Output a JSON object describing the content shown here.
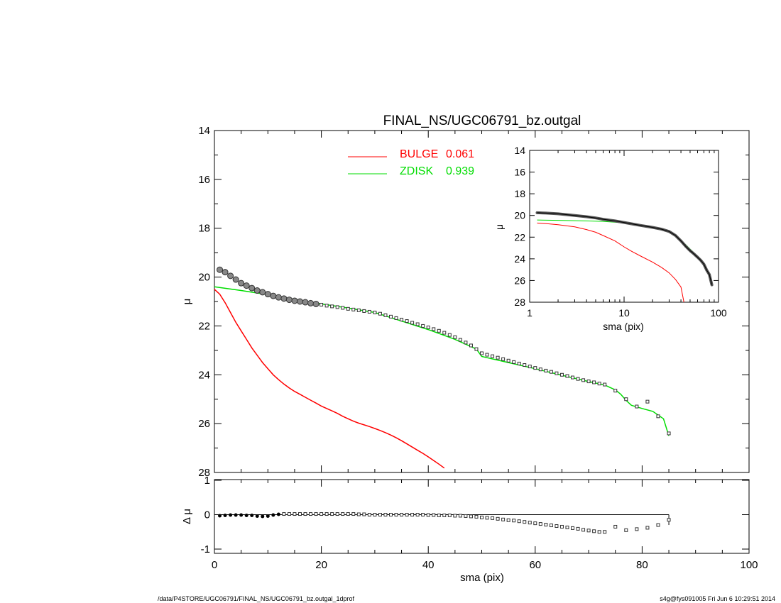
{
  "colors": {
    "bulge": "#ff0000",
    "zdisk": "#00dd00",
    "data": "#000000"
  },
  "footer": {
    "left": "/data/P4STORE/UGC06791/FINAL_NS/UGC06791_bz.outgal_1dprof",
    "right": "s4g@fys091005  Fri Jun  6 10:29:51 2014"
  },
  "chart_data": [
    {
      "id": "main",
      "type": "scatter",
      "title": "FINAL_NS/UGC06791_bz.outgal",
      "xlabel": "",
      "ylabel": "μ",
      "xlim": [
        0,
        100
      ],
      "ylim": [
        28,
        14
      ],
      "yticks": [
        "14",
        "16",
        "18",
        "20",
        "22",
        "24",
        "26",
        "28"
      ],
      "legend": {
        "placement": "top-center",
        "entries": [
          {
            "name": "BULGE",
            "value": "0.061",
            "color": "#ff0000"
          },
          {
            "name": "ZDISK",
            "value": "0.939",
            "color": "#00dd00"
          }
        ]
      },
      "series": [
        {
          "name": "data",
          "x": [
            1,
            2,
            3,
            4,
            5,
            6,
            7,
            8,
            9,
            10,
            11,
            12,
            13,
            14,
            15,
            16,
            17,
            18,
            19,
            20,
            21,
            22,
            23,
            24,
            25,
            26,
            27,
            28,
            29,
            30,
            31,
            32,
            33,
            34,
            35,
            36,
            37,
            38,
            39,
            40,
            41,
            42,
            43,
            44,
            45,
            46,
            47,
            48,
            49,
            50,
            51,
            52,
            53,
            54,
            55,
            56,
            57,
            58,
            59,
            60,
            61,
            62,
            63,
            64,
            65,
            66,
            67,
            68,
            69,
            70,
            71,
            72,
            73,
            75,
            77,
            79,
            81,
            83,
            85
          ],
          "y": [
            19.7,
            19.8,
            19.95,
            20.1,
            20.25,
            20.35,
            20.45,
            20.55,
            20.62,
            20.7,
            20.77,
            20.83,
            20.88,
            20.93,
            20.97,
            21.0,
            21.03,
            21.07,
            21.1,
            21.13,
            21.17,
            21.2,
            21.23,
            21.26,
            21.3,
            21.33,
            21.36,
            21.39,
            21.42,
            21.45,
            21.5,
            21.56,
            21.62,
            21.68,
            21.74,
            21.8,
            21.87,
            21.93,
            22.0,
            22.06,
            22.13,
            22.2,
            22.28,
            22.37,
            22.46,
            22.57,
            22.68,
            22.8,
            22.95,
            23.12,
            23.18,
            23.24,
            23.3,
            23.36,
            23.42,
            23.48,
            23.54,
            23.6,
            23.66,
            23.72,
            23.78,
            23.83,
            23.88,
            23.94,
            24.0,
            24.05,
            24.11,
            24.17,
            24.22,
            24.27,
            24.31,
            24.36,
            24.4,
            24.65,
            25.0,
            25.3,
            25.1,
            25.7,
            26.4
          ]
        },
        {
          "name": "BULGE",
          "x": [
            0,
            1,
            2,
            3,
            4,
            5,
            6,
            7,
            8,
            9,
            10,
            11,
            12,
            13,
            14,
            15,
            16,
            17,
            18,
            19,
            20,
            21,
            22,
            23,
            24,
            25,
            26,
            27,
            28,
            29,
            30,
            31,
            32,
            33,
            34,
            35,
            36,
            37,
            38,
            39,
            40,
            41,
            42,
            43
          ],
          "y": [
            20.5,
            20.7,
            21.05,
            21.45,
            21.85,
            22.2,
            22.55,
            22.9,
            23.2,
            23.5,
            23.75,
            24.0,
            24.2,
            24.38,
            24.54,
            24.68,
            24.8,
            24.92,
            25.04,
            25.16,
            25.28,
            25.38,
            25.48,
            25.58,
            25.7,
            25.8,
            25.9,
            25.98,
            26.05,
            26.12,
            26.2,
            26.28,
            26.37,
            26.47,
            26.58,
            26.7,
            26.83,
            26.96,
            27.09,
            27.22,
            27.36,
            27.51,
            27.66,
            27.82
          ]
        },
        {
          "name": "ZDISK",
          "x": [
            0,
            5,
            10,
            15,
            20,
            25,
            30,
            35,
            40,
            45,
            49,
            50,
            55,
            60,
            65,
            70,
            73,
            74,
            75,
            76,
            77,
            78,
            80,
            82,
            84,
            85
          ],
          "y": [
            20.4,
            20.55,
            20.72,
            20.92,
            21.1,
            21.27,
            21.45,
            21.8,
            22.15,
            22.55,
            22.95,
            23.25,
            23.5,
            23.75,
            24.02,
            24.28,
            24.42,
            24.52,
            24.62,
            24.8,
            25.05,
            25.25,
            25.38,
            25.5,
            25.8,
            26.5
          ]
        }
      ]
    },
    {
      "id": "inset",
      "type": "line",
      "xlabel": "sma (pix)",
      "ylabel": "μ",
      "xscale": "log",
      "xlim": [
        1,
        100
      ],
      "ylim": [
        28,
        14
      ],
      "xticks": [
        "1",
        "10",
        "100"
      ],
      "yticks": [
        "14",
        "16",
        "18",
        "20",
        "22",
        "24",
        "26",
        "28"
      ],
      "series": [
        {
          "name": "data",
          "x": [
            1.2,
            1.5,
            2,
            3,
            4,
            5,
            6,
            8,
            10,
            12,
            15,
            20,
            25,
            30,
            35,
            40,
            45,
            50,
            55,
            60,
            65,
            70,
            75,
            80,
            85
          ],
          "y": [
            19.75,
            19.78,
            19.85,
            20.0,
            20.12,
            20.23,
            20.35,
            20.5,
            20.65,
            20.77,
            20.92,
            21.1,
            21.27,
            21.48,
            21.85,
            22.35,
            22.85,
            23.25,
            23.55,
            23.85,
            24.15,
            24.5,
            25.05,
            25.45,
            26.4
          ]
        },
        {
          "name": "BULGE",
          "x": [
            1.2,
            1.5,
            2,
            3,
            4,
            5,
            6,
            8,
            10,
            12,
            15,
            20,
            25,
            30,
            35,
            40,
            43
          ],
          "y": [
            20.7,
            20.75,
            20.85,
            21.05,
            21.3,
            21.55,
            21.85,
            22.35,
            22.9,
            23.3,
            23.75,
            24.3,
            24.8,
            25.3,
            25.9,
            26.6,
            28.0
          ]
        },
        {
          "name": "ZDISK",
          "x": [
            1.2,
            2,
            4,
            6,
            10,
            15,
            20,
            25,
            30,
            35,
            40,
            45,
            50,
            55,
            60,
            65,
            70,
            75,
            80,
            85
          ],
          "y": [
            20.42,
            20.45,
            20.5,
            20.55,
            20.68,
            20.85,
            21.05,
            21.25,
            21.45,
            21.8,
            22.25,
            22.7,
            23.1,
            23.45,
            23.75,
            24.1,
            24.5,
            25.05,
            25.55,
            26.45
          ]
        }
      ]
    },
    {
      "id": "residual",
      "type": "scatter",
      "xlabel": "sma (pix)",
      "ylabel": "Δ μ",
      "xlim": [
        0,
        100
      ],
      "ylim": [
        -1,
        1
      ],
      "xticks": [
        "0",
        "20",
        "40",
        "60",
        "80",
        "100"
      ],
      "yticks": [
        "1",
        "0",
        "-1"
      ],
      "series": [
        {
          "name": "residual",
          "x": [
            1,
            2,
            3,
            4,
            5,
            6,
            7,
            8,
            9,
            10,
            11,
            12,
            13,
            14,
            15,
            16,
            17,
            18,
            19,
            20,
            21,
            22,
            23,
            24,
            25,
            26,
            27,
            28,
            29,
            30,
            31,
            32,
            33,
            34,
            35,
            36,
            37,
            38,
            39,
            40,
            41,
            42,
            43,
            44,
            45,
            46,
            47,
            48,
            49,
            50,
            51,
            52,
            53,
            54,
            55,
            56,
            57,
            58,
            59,
            60,
            61,
            62,
            63,
            64,
            65,
            66,
            67,
            68,
            69,
            70,
            71,
            72,
            73,
            75,
            77,
            79,
            81,
            83,
            85
          ],
          "y": [
            -0.03,
            -0.02,
            -0.01,
            -0.01,
            -0.01,
            -0.02,
            -0.02,
            -0.04,
            -0.05,
            -0.04,
            -0.01,
            0.01,
            0.02,
            0.02,
            0.02,
            0.02,
            0.02,
            0.02,
            0.02,
            0.02,
            0.02,
            0.02,
            0.02,
            0.02,
            0.02,
            0.02,
            0.01,
            0.01,
            0.0,
            0.0,
            0.0,
            0.0,
            0.0,
            0.0,
            0.0,
            0.0,
            0.0,
            0.0,
            0.0,
            -0.01,
            -0.01,
            -0.02,
            -0.02,
            -0.02,
            -0.03,
            -0.03,
            -0.04,
            -0.05,
            -0.06,
            -0.08,
            -0.09,
            -0.1,
            -0.12,
            -0.14,
            -0.16,
            -0.17,
            -0.19,
            -0.21,
            -0.23,
            -0.25,
            -0.27,
            -0.29,
            -0.31,
            -0.33,
            -0.35,
            -0.37,
            -0.39,
            -0.41,
            -0.44,
            -0.46,
            -0.48,
            -0.5,
            -0.5,
            -0.35,
            -0.45,
            -0.42,
            -0.38,
            -0.3,
            -0.15
          ]
        }
      ]
    }
  ]
}
